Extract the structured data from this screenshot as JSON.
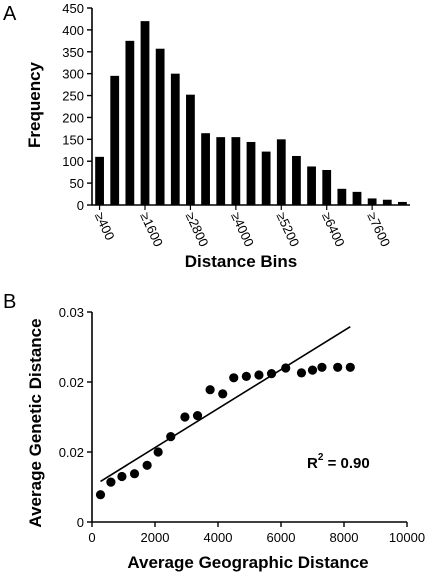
{
  "panels": {
    "a": "A",
    "b": "B"
  },
  "chart_data": [
    {
      "type": "bar",
      "panel": "A",
      "xlabel": "Distance Bins",
      "ylabel": "Frequency",
      "ylim": [
        0,
        450
      ],
      "yticks": [
        0,
        50,
        100,
        150,
        200,
        250,
        300,
        350,
        400,
        450
      ],
      "x_tick_labels": [
        "≥400",
        "≥1600",
        "≥2800",
        "≥4000",
        "≥5200",
        "≥6400",
        "≥7600"
      ],
      "x_tick_every": 3,
      "values": [
        110,
        295,
        375,
        420,
        357,
        300,
        252,
        164,
        155,
        155,
        144,
        122,
        150,
        112,
        88,
        80,
        37,
        30,
        15,
        12,
        7
      ],
      "color": "#000000"
    },
    {
      "type": "scatter",
      "panel": "B",
      "xlabel": "Average Geographic Distance",
      "ylabel": "Average Genetic Distance",
      "xlim": [
        0,
        10000
      ],
      "ylim": [
        0,
        0.03
      ],
      "xticks": [
        0,
        2000,
        4000,
        6000,
        8000,
        10000
      ],
      "ytick_labels": [
        "0",
        "0.02",
        "0.02",
        "0.03"
      ],
      "points": [
        [
          270,
          0.0039
        ],
        [
          600,
          0.0057
        ],
        [
          950,
          0.0065
        ],
        [
          1350,
          0.0069
        ],
        [
          1750,
          0.0081
        ],
        [
          2100,
          0.01
        ],
        [
          2500,
          0.0122
        ],
        [
          2950,
          0.015
        ],
        [
          3350,
          0.0152
        ],
        [
          3750,
          0.0189
        ],
        [
          4150,
          0.0183
        ],
        [
          4500,
          0.0206
        ],
        [
          4900,
          0.0208
        ],
        [
          5300,
          0.021
        ],
        [
          5700,
          0.0212
        ],
        [
          6150,
          0.022
        ],
        [
          6650,
          0.0213
        ],
        [
          7000,
          0.0217
        ],
        [
          7300,
          0.0221
        ],
        [
          7800,
          0.0221
        ],
        [
          8200,
          0.0221
        ]
      ],
      "trendline": {
        "x": [
          270,
          8200
        ],
        "y": [
          0.0058,
          0.0279
        ]
      },
      "annotation": {
        "r2_label": "R",
        "r2_exp": "2",
        "r2_value": " = 0.90"
      },
      "color": "#000000"
    }
  ]
}
